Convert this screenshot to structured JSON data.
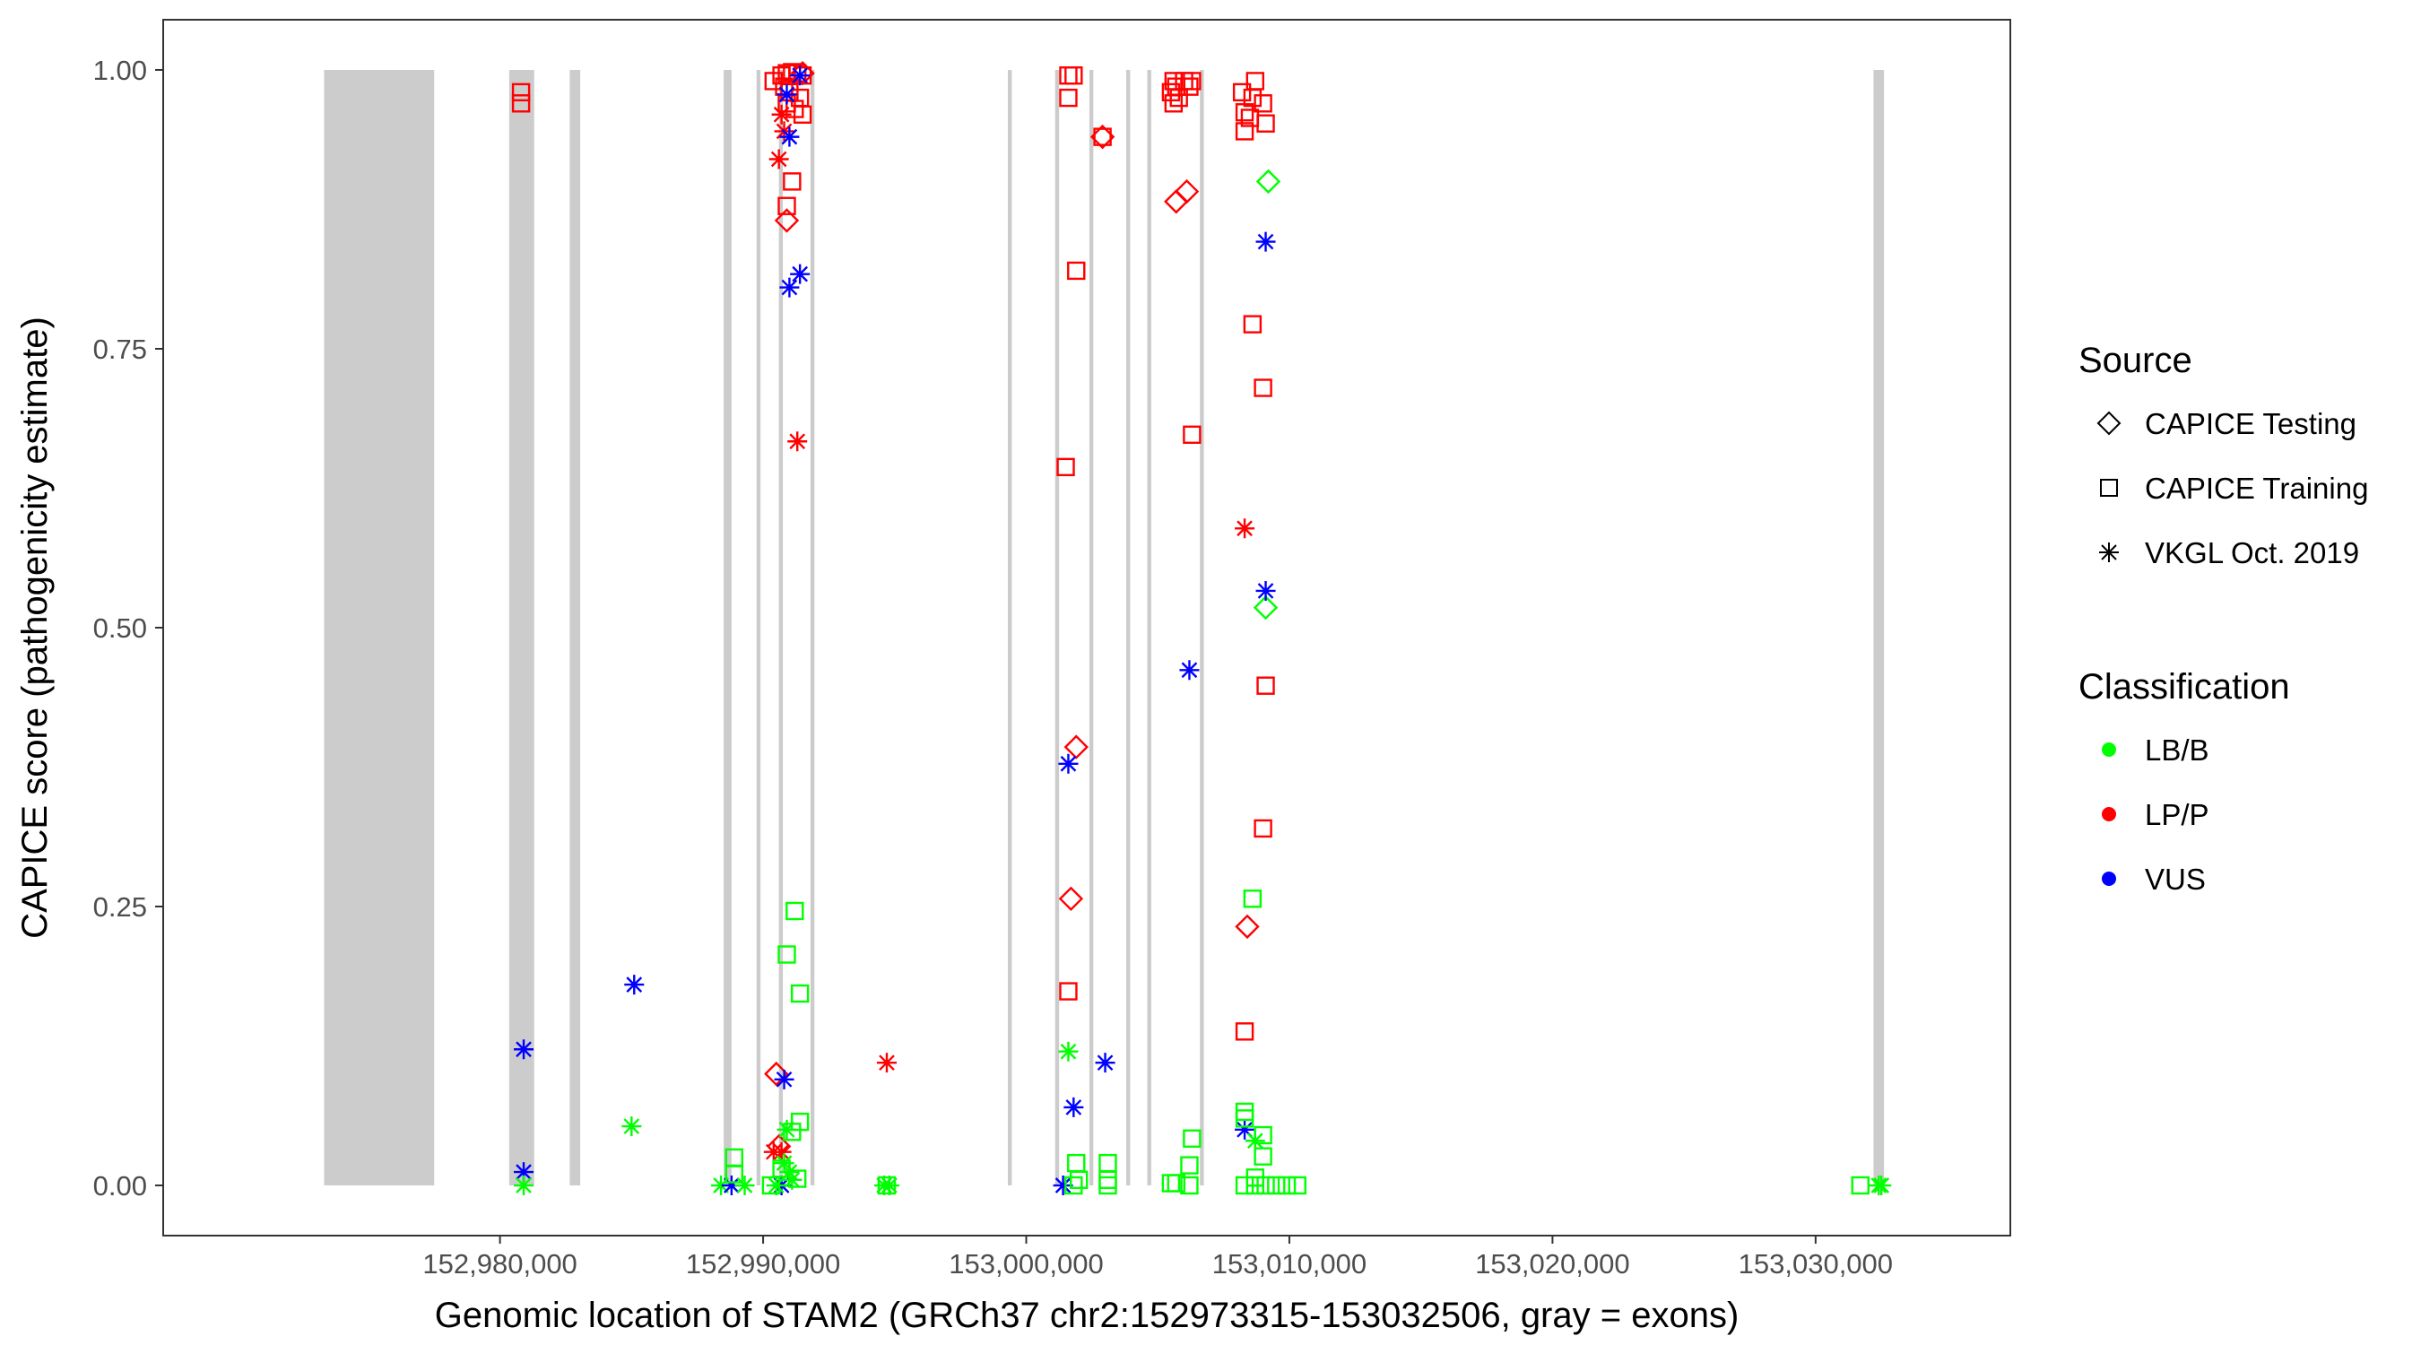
{
  "chart_data": {
    "type": "scatter",
    "xlabel": "Genomic location of STAM2 (GRCh37 chr2:152973315-153032506, gray = exons)",
    "ylabel": "CAPICE score (pathogenicity estimate)",
    "xlim": [
      152967200,
      153037400
    ],
    "ylim": [
      -0.045,
      1.045
    ],
    "x_ticks": [
      152980000,
      152990000,
      153000000,
      153010000,
      153020000,
      153030000
    ],
    "x_tick_labels": [
      "152,980,000",
      "152,990,000",
      "153,000,000",
      "153,010,000",
      "153,020,000",
      "153,030,000"
    ],
    "y_ticks": [
      0,
      0.25,
      0.5,
      0.75,
      1
    ],
    "y_tick_labels": [
      "0.00",
      "0.25",
      "0.50",
      "0.75",
      "1.00"
    ],
    "exon_color": "#cccccc",
    "exons": [
      [
        152973315,
        152977500
      ],
      [
        152980350,
        152981300
      ],
      [
        152982650,
        152983050
      ],
      [
        152988500,
        152988800
      ],
      [
        152989750,
        152989900
      ],
      [
        152990600,
        152990750
      ],
      [
        152991800,
        152991950
      ],
      [
        152999300,
        152999450
      ],
      [
        153001100,
        153001250
      ],
      [
        153002400,
        153002550
      ],
      [
        153003800,
        153003950
      ],
      [
        153004600,
        153004750
      ],
      [
        153006600,
        153006750
      ],
      [
        153032200,
        153032600
      ]
    ],
    "legend": {
      "source_title": "Source",
      "source_items": [
        {
          "label": "CAPICE Testing",
          "shape": "diamond"
        },
        {
          "label": "CAPICE Training",
          "shape": "square"
        },
        {
          "label": "VKGL Oct. 2019",
          "shape": "asterisk"
        }
      ],
      "classification_title": "Classification",
      "classification_items": [
        {
          "label": "LB/B",
          "color": "#00ff00"
        },
        {
          "label": "LP/P",
          "color": "#ff0000"
        },
        {
          "label": "VUS",
          "color": "#0000ff"
        }
      ]
    },
    "shapes": {
      "CAPICE Testing": "diamond",
      "CAPICE Training": "square",
      "VKGL Oct. 2019": "asterisk"
    },
    "colors": {
      "LB/B": "#00ff00",
      "LP/P": "#ff0000",
      "VUS": "#0000ff"
    },
    "points": [
      {
        "x": 152980800,
        "y": 0.98,
        "source": "CAPICE Training",
        "class": "LP/P"
      },
      {
        "x": 152980800,
        "y": 0.97,
        "source": "CAPICE Training",
        "class": "LP/P"
      },
      {
        "x": 152980900,
        "y": 0.122,
        "source": "VKGL Oct. 2019",
        "class": "VUS"
      },
      {
        "x": 152980900,
        "y": 0.012,
        "source": "VKGL Oct. 2019",
        "class": "VUS"
      },
      {
        "x": 152980900,
        "y": 0.0,
        "source": "VKGL Oct. 2019",
        "class": "LB/B"
      },
      {
        "x": 152985100,
        "y": 0.18,
        "source": "VKGL Oct. 2019",
        "class": "VUS"
      },
      {
        "x": 152985000,
        "y": 0.053,
        "source": "VKGL Oct. 2019",
        "class": "LB/B"
      },
      {
        "x": 152988400,
        "y": 0.0,
        "source": "VKGL Oct. 2019",
        "class": "LB/B"
      },
      {
        "x": 152988800,
        "y": 0.0,
        "source": "VKGL Oct. 2019",
        "class": "VUS"
      },
      {
        "x": 152989300,
        "y": 0.0,
        "source": "VKGL Oct. 2019",
        "class": "LB/B"
      },
      {
        "x": 152988900,
        "y": 0.025,
        "source": "CAPICE Training",
        "class": "LB/B"
      },
      {
        "x": 152988900,
        "y": 0.01,
        "source": "CAPICE Training",
        "class": "LB/B"
      },
      {
        "x": 152990400,
        "y": 0.99,
        "source": "CAPICE Training",
        "class": "LP/P"
      },
      {
        "x": 152990700,
        "y": 0.995,
        "source": "CAPICE Training",
        "class": "LP/P"
      },
      {
        "x": 152990900,
        "y": 0.997,
        "source": "CAPICE Training",
        "class": "LP/P"
      },
      {
        "x": 152991100,
        "y": 0.998,
        "source": "CAPICE Training",
        "class": "LP/P"
      },
      {
        "x": 152991300,
        "y": 0.997,
        "source": "CAPICE Training",
        "class": "LP/P"
      },
      {
        "x": 152991500,
        "y": 0.995,
        "source": "CAPICE Training",
        "class": "LP/P"
      },
      {
        "x": 152990800,
        "y": 0.985,
        "source": "CAPICE Training",
        "class": "LP/P"
      },
      {
        "x": 152991000,
        "y": 0.98,
        "source": "CAPICE Training",
        "class": "LP/P"
      },
      {
        "x": 152991400,
        "y": 0.975,
        "source": "CAPICE Training",
        "class": "LP/P"
      },
      {
        "x": 152990900,
        "y": 0.97,
        "source": "CAPICE Training",
        "class": "LP/P"
      },
      {
        "x": 152991200,
        "y": 0.965,
        "source": "CAPICE Training",
        "class": "LP/P"
      },
      {
        "x": 152991500,
        "y": 0.96,
        "source": "CAPICE Training",
        "class": "LP/P"
      },
      {
        "x": 152991100,
        "y": 0.9,
        "source": "CAPICE Training",
        "class": "LP/P"
      },
      {
        "x": 152990900,
        "y": 0.878,
        "source": "CAPICE Training",
        "class": "LP/P"
      },
      {
        "x": 152990900,
        "y": 0.865,
        "source": "CAPICE Testing",
        "class": "LP/P"
      },
      {
        "x": 152991500,
        "y": 0.997,
        "source": "CAPICE Testing",
        "class": "LP/P"
      },
      {
        "x": 152990700,
        "y": 0.96,
        "source": "VKGL Oct. 2019",
        "class": "LP/P"
      },
      {
        "x": 152990800,
        "y": 0.945,
        "source": "VKGL Oct. 2019",
        "class": "LP/P"
      },
      {
        "x": 152990600,
        "y": 0.92,
        "source": "VKGL Oct. 2019",
        "class": "LP/P"
      },
      {
        "x": 152991300,
        "y": 0.667,
        "source": "VKGL Oct. 2019",
        "class": "LP/P"
      },
      {
        "x": 152990700,
        "y": 0.03,
        "source": "VKGL Oct. 2019",
        "class": "LP/P"
      },
      {
        "x": 152990400,
        "y": 0.03,
        "source": "VKGL Oct. 2019",
        "class": "LP/P"
      },
      {
        "x": 152990500,
        "y": 0.1,
        "source": "CAPICE Testing",
        "class": "LP/P"
      },
      {
        "x": 152990600,
        "y": 0.035,
        "source": "CAPICE Testing",
        "class": "LP/P"
      },
      {
        "x": 152991400,
        "y": 0.995,
        "source": "VKGL Oct. 2019",
        "class": "VUS"
      },
      {
        "x": 152990900,
        "y": 0.978,
        "source": "VKGL Oct. 2019",
        "class": "VUS"
      },
      {
        "x": 152991000,
        "y": 0.94,
        "source": "VKGL Oct. 2019",
        "class": "VUS"
      },
      {
        "x": 152991400,
        "y": 0.817,
        "source": "VKGL Oct. 2019",
        "class": "VUS"
      },
      {
        "x": 152991000,
        "y": 0.805,
        "source": "VKGL Oct. 2019",
        "class": "VUS"
      },
      {
        "x": 152990800,
        "y": 0.095,
        "source": "VKGL Oct. 2019",
        "class": "VUS"
      },
      {
        "x": 152990700,
        "y": 0.0,
        "source": "VKGL Oct. 2019",
        "class": "VUS"
      },
      {
        "x": 152991200,
        "y": 0.246,
        "source": "CAPICE Training",
        "class": "LB/B"
      },
      {
        "x": 152990900,
        "y": 0.207,
        "source": "CAPICE Training",
        "class": "LB/B"
      },
      {
        "x": 152991400,
        "y": 0.172,
        "source": "CAPICE Training",
        "class": "LB/B"
      },
      {
        "x": 152991400,
        "y": 0.057,
        "source": "CAPICE Training",
        "class": "LB/B"
      },
      {
        "x": 152991100,
        "y": 0.048,
        "source": "CAPICE Training",
        "class": "LB/B"
      },
      {
        "x": 152990700,
        "y": 0.015,
        "source": "CAPICE Training",
        "class": "LB/B"
      },
      {
        "x": 152991300,
        "y": 0.006,
        "source": "CAPICE Training",
        "class": "LB/B"
      },
      {
        "x": 152990300,
        "y": 0.0,
        "source": "CAPICE Training",
        "class": "LB/B"
      },
      {
        "x": 152990900,
        "y": 0.05,
        "source": "VKGL Oct. 2019",
        "class": "LB/B"
      },
      {
        "x": 152990800,
        "y": 0.02,
        "source": "VKGL Oct. 2019",
        "class": "LB/B"
      },
      {
        "x": 152991000,
        "y": 0.012,
        "source": "VKGL Oct. 2019",
        "class": "LB/B"
      },
      {
        "x": 152991100,
        "y": 0.005,
        "source": "VKGL Oct. 2019",
        "class": "LB/B"
      },
      {
        "x": 152990500,
        "y": 0.0,
        "source": "VKGL Oct. 2019",
        "class": "LB/B"
      },
      {
        "x": 152994700,
        "y": 0.11,
        "source": "VKGL Oct. 2019",
        "class": "LP/P"
      },
      {
        "x": 152994600,
        "y": 0.0,
        "source": "VKGL Oct. 2019",
        "class": "LB/B"
      },
      {
        "x": 152994800,
        "y": 0.0,
        "source": "VKGL Oct. 2019",
        "class": "LB/B"
      },
      {
        "x": 152994700,
        "y": 0.0,
        "source": "CAPICE Training",
        "class": "LB/B"
      },
      {
        "x": 153001600,
        "y": 0.995,
        "source": "CAPICE Training",
        "class": "LP/P"
      },
      {
        "x": 153001800,
        "y": 0.995,
        "source": "CAPICE Training",
        "class": "LP/P"
      },
      {
        "x": 153001600,
        "y": 0.975,
        "source": "CAPICE Training",
        "class": "LP/P"
      },
      {
        "x": 153001900,
        "y": 0.82,
        "source": "CAPICE Training",
        "class": "LP/P"
      },
      {
        "x": 153001500,
        "y": 0.644,
        "source": "CAPICE Training",
        "class": "LP/P"
      },
      {
        "x": 153001600,
        "y": 0.174,
        "source": "CAPICE Training",
        "class": "LP/P"
      },
      {
        "x": 153002900,
        "y": 0.94,
        "source": "CAPICE Training",
        "class": "LP/P"
      },
      {
        "x": 153002900,
        "y": 0.94,
        "source": "CAPICE Testing",
        "class": "LP/P"
      },
      {
        "x": 153001900,
        "y": 0.393,
        "source": "CAPICE Testing",
        "class": "LP/P"
      },
      {
        "x": 153001700,
        "y": 0.257,
        "source": "CAPICE Testing",
        "class": "LP/P"
      },
      {
        "x": 153001600,
        "y": 0.378,
        "source": "VKGL Oct. 2019",
        "class": "VUS"
      },
      {
        "x": 153003000,
        "y": 0.11,
        "source": "VKGL Oct. 2019",
        "class": "VUS"
      },
      {
        "x": 153001800,
        "y": 0.07,
        "source": "VKGL Oct. 2019",
        "class": "VUS"
      },
      {
        "x": 153001400,
        "y": 0.0,
        "source": "VKGL Oct. 2019",
        "class": "VUS"
      },
      {
        "x": 153001600,
        "y": 0.12,
        "source": "VKGL Oct. 2019",
        "class": "LB/B"
      },
      {
        "x": 153001900,
        "y": 0.02,
        "source": "CAPICE Training",
        "class": "LB/B"
      },
      {
        "x": 153003100,
        "y": 0.02,
        "source": "CAPICE Training",
        "class": "LB/B"
      },
      {
        "x": 153002000,
        "y": 0.005,
        "source": "CAPICE Training",
        "class": "LB/B"
      },
      {
        "x": 153003100,
        "y": 0.005,
        "source": "CAPICE Training",
        "class": "LB/B"
      },
      {
        "x": 153001800,
        "y": 0.0,
        "source": "CAPICE Training",
        "class": "LB/B"
      },
      {
        "x": 153003100,
        "y": 0.0,
        "source": "CAPICE Training",
        "class": "LB/B"
      },
      {
        "x": 153005600,
        "y": 0.99,
        "source": "CAPICE Training",
        "class": "LP/P"
      },
      {
        "x": 153006000,
        "y": 0.99,
        "source": "CAPICE Training",
        "class": "LP/P"
      },
      {
        "x": 153006300,
        "y": 0.99,
        "source": "CAPICE Training",
        "class": "LP/P"
      },
      {
        "x": 153005700,
        "y": 0.985,
        "source": "CAPICE Training",
        "class": "LP/P"
      },
      {
        "x": 153006200,
        "y": 0.985,
        "source": "CAPICE Training",
        "class": "LP/P"
      },
      {
        "x": 153005500,
        "y": 0.98,
        "source": "CAPICE Training",
        "class": "LP/P"
      },
      {
        "x": 153005800,
        "y": 0.975,
        "source": "CAPICE Training",
        "class": "LP/P"
      },
      {
        "x": 153005600,
        "y": 0.97,
        "source": "CAPICE Training",
        "class": "LP/P"
      },
      {
        "x": 153006300,
        "y": 0.673,
        "source": "CAPICE Training",
        "class": "LP/P"
      },
      {
        "x": 153005700,
        "y": 0.882,
        "source": "CAPICE Testing",
        "class": "LP/P"
      },
      {
        "x": 153006100,
        "y": 0.891,
        "source": "CAPICE Testing",
        "class": "LP/P"
      },
      {
        "x": 153006200,
        "y": 0.462,
        "source": "VKGL Oct. 2019",
        "class": "VUS"
      },
      {
        "x": 153006300,
        "y": 0.042,
        "source": "CAPICE Training",
        "class": "LB/B"
      },
      {
        "x": 153006200,
        "y": 0.018,
        "source": "CAPICE Training",
        "class": "LB/B"
      },
      {
        "x": 153005500,
        "y": 0.002,
        "source": "CAPICE Training",
        "class": "LB/B"
      },
      {
        "x": 153005700,
        "y": 0.002,
        "source": "CAPICE Training",
        "class": "LB/B"
      },
      {
        "x": 153006200,
        "y": 0.0,
        "source": "CAPICE Training",
        "class": "LB/B"
      },
      {
        "x": 153008700,
        "y": 0.99,
        "source": "CAPICE Training",
        "class": "LP/P"
      },
      {
        "x": 153008200,
        "y": 0.98,
        "source": "CAPICE Training",
        "class": "LP/P"
      },
      {
        "x": 153008600,
        "y": 0.975,
        "source": "CAPICE Training",
        "class": "LP/P"
      },
      {
        "x": 153009000,
        "y": 0.97,
        "source": "CAPICE Training",
        "class": "LP/P"
      },
      {
        "x": 153008300,
        "y": 0.962,
        "source": "CAPICE Training",
        "class": "LP/P"
      },
      {
        "x": 153008500,
        "y": 0.957,
        "source": "CAPICE Training",
        "class": "LP/P"
      },
      {
        "x": 153009100,
        "y": 0.952,
        "source": "CAPICE Training",
        "class": "LP/P"
      },
      {
        "x": 153008300,
        "y": 0.945,
        "source": "CAPICE Training",
        "class": "LP/P"
      },
      {
        "x": 153008600,
        "y": 0.772,
        "source": "CAPICE Training",
        "class": "LP/P"
      },
      {
        "x": 153009000,
        "y": 0.715,
        "source": "CAPICE Training",
        "class": "LP/P"
      },
      {
        "x": 153009100,
        "y": 0.448,
        "source": "CAPICE Training",
        "class": "LP/P"
      },
      {
        "x": 153009000,
        "y": 0.32,
        "source": "CAPICE Training",
        "class": "LP/P"
      },
      {
        "x": 153008300,
        "y": 0.138,
        "source": "CAPICE Training",
        "class": "LP/P"
      },
      {
        "x": 153008300,
        "y": 0.589,
        "source": "VKGL Oct. 2019",
        "class": "LP/P"
      },
      {
        "x": 153008400,
        "y": 0.232,
        "source": "CAPICE Testing",
        "class": "LP/P"
      },
      {
        "x": 153009200,
        "y": 0.9,
        "source": "CAPICE Testing",
        "class": "LB/B"
      },
      {
        "x": 153009100,
        "y": 0.518,
        "source": "CAPICE Testing",
        "class": "LB/B"
      },
      {
        "x": 153009100,
        "y": 0.846,
        "source": "VKGL Oct. 2019",
        "class": "VUS"
      },
      {
        "x": 153009100,
        "y": 0.533,
        "source": "VKGL Oct. 2019",
        "class": "VUS"
      },
      {
        "x": 153008300,
        "y": 0.05,
        "source": "VKGL Oct. 2019",
        "class": "VUS"
      },
      {
        "x": 153008600,
        "y": 0.257,
        "source": "CAPICE Training",
        "class": "LB/B"
      },
      {
        "x": 153008300,
        "y": 0.066,
        "source": "CAPICE Training",
        "class": "LB/B"
      },
      {
        "x": 153008300,
        "y": 0.06,
        "source": "CAPICE Training",
        "class": "LB/B"
      },
      {
        "x": 153009000,
        "y": 0.045,
        "source": "CAPICE Training",
        "class": "LB/B"
      },
      {
        "x": 153009000,
        "y": 0.026,
        "source": "CAPICE Training",
        "class": "LB/B"
      },
      {
        "x": 153008700,
        "y": 0.007,
        "source": "CAPICE Training",
        "class": "LB/B"
      },
      {
        "x": 153008300,
        "y": 0.0,
        "source": "CAPICE Training",
        "class": "LB/B"
      },
      {
        "x": 153008700,
        "y": 0.0,
        "source": "CAPICE Training",
        "class": "LB/B"
      },
      {
        "x": 153009100,
        "y": 0.0,
        "source": "CAPICE Training",
        "class": "LB/B"
      },
      {
        "x": 153009500,
        "y": 0.0,
        "source": "CAPICE Training",
        "class": "LB/B"
      },
      {
        "x": 153009900,
        "y": 0.0,
        "source": "CAPICE Training",
        "class": "LB/B"
      },
      {
        "x": 153010300,
        "y": 0.0,
        "source": "CAPICE Training",
        "class": "LB/B"
      },
      {
        "x": 153008700,
        "y": 0.04,
        "source": "VKGL Oct. 2019",
        "class": "LB/B"
      },
      {
        "x": 153031700,
        "y": 0.0,
        "source": "CAPICE Training",
        "class": "LB/B"
      },
      {
        "x": 153032400,
        "y": 0.0,
        "source": "VKGL Oct. 2019",
        "class": "LB/B"
      },
      {
        "x": 153032500,
        "y": 0.0,
        "source": "VKGL Oct. 2019",
        "class": "LB/B"
      }
    ]
  }
}
